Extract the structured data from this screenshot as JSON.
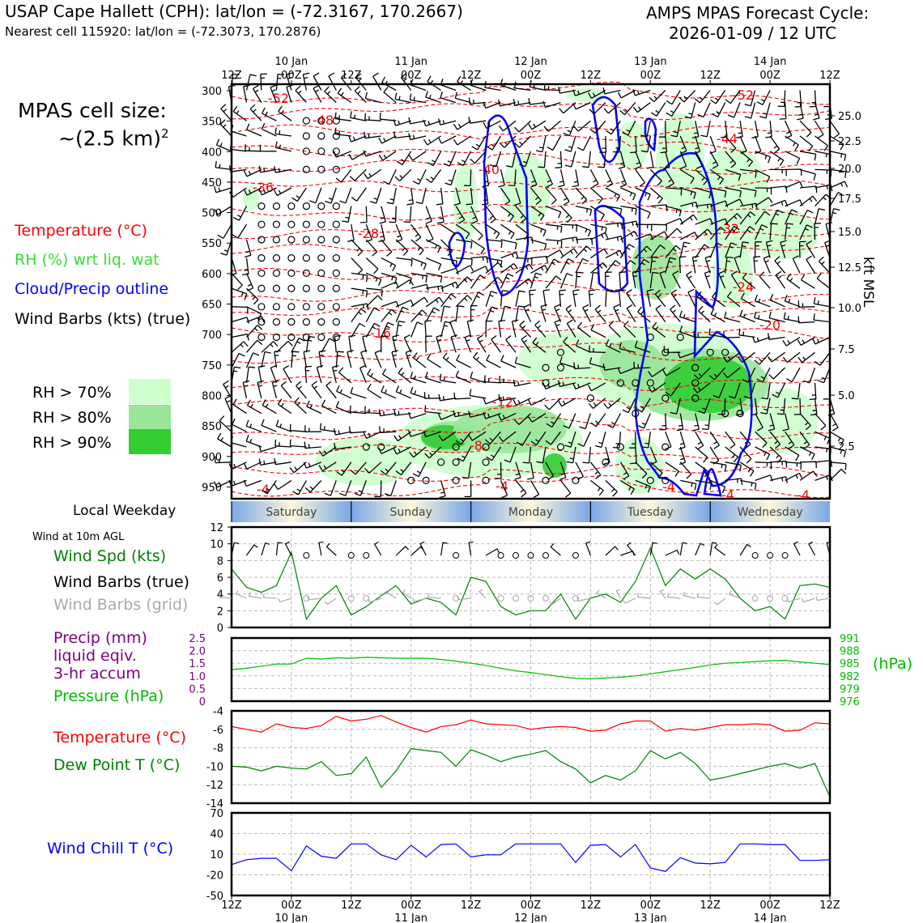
{
  "header": {
    "station": "USAP Cape Hallett (CPH): lat/lon = (-72.3167, 170.2667)",
    "nearest_cell": "Nearest cell 115920: lat/lon = (-72.3073, 170.2876)",
    "forecast_line1": "AMPS MPAS Forecast Cycle:",
    "forecast_line2": "2026-01-09 / 12 UTC"
  },
  "cell_size": {
    "line1": "MPAS cell size:",
    "line2": "~(2.5 km)",
    "sup": "2"
  },
  "legend": {
    "temperature": "Temperature (°C)",
    "rh": "RH (%) wrt liq. wat",
    "cloud": "Cloud/Precip outline",
    "wind": "Wind Barbs (kts) (true)",
    "rh70": "RH > 70%",
    "rh80": "RH > 80%",
    "rh90": "RH > 90%"
  },
  "colors": {
    "temp": "#ff0000",
    "rh": "#33cc33",
    "cloud": "#0000ff",
    "rh70": "#ccffcc",
    "rh80": "#99e699",
    "rh90": "#33cc33",
    "wind_spd": "#008000",
    "pressure": "#00bb00",
    "precip": "#800080",
    "dew": "#008000",
    "wind_chill": "#0000ff",
    "grid_barb": "#aaaaaa"
  },
  "time_axis": {
    "top_row": [
      "12Z",
      "00Z",
      "12Z",
      "00Z",
      "12Z",
      "00Z",
      "12Z",
      "00Z",
      "12Z",
      "00Z",
      "12Z"
    ],
    "dates": [
      "10 Jan",
      "11 Jan",
      "12 Jan",
      "13 Jan",
      "14 Jan"
    ]
  },
  "weekday": {
    "label": "Local Weekday",
    "days": [
      "Saturday",
      "Sunday",
      "Monday",
      "Tuesday",
      "Wednesday"
    ]
  },
  "sounding": {
    "pressure_ticks": [
      "300",
      "350",
      "400",
      "450",
      "500",
      "550",
      "600",
      "650",
      "700",
      "750",
      "800",
      "850",
      "900",
      "950"
    ],
    "kft_ticks": [
      "25.0",
      "22.5",
      "20.0",
      "17.5",
      "15.0",
      "12.5",
      "10.0",
      "7.5",
      "5.0",
      "2.5"
    ],
    "kft_label": "kft MSL",
    "temp_labels": [
      "-52",
      "-48",
      "-44",
      "-40",
      "-36",
      "-32",
      "-28",
      "-24",
      "-20",
      "-16",
      "-12",
      "-8",
      "-4",
      "-4",
      "-4",
      "-4",
      "-4",
      "-52"
    ]
  },
  "surface": {
    "wind_note": "Wind at 10m AGL",
    "wind_spd": "Wind Spd (kts)",
    "wind_barbs_true": "Wind Barbs (true)",
    "wind_barbs_grid": "Wind Barbs (grid)",
    "precip1": "Precip (mm)",
    "precip2": "liquid eqiv.",
    "precip3": "3-hr accum",
    "pressure": "Pressure (hPa)",
    "hpa_unit": "(hPa)",
    "temp": "Temperature (°C)",
    "dew": "Dew Point T (°C)",
    "chill": "Wind Chill T (°C)"
  },
  "chart_data": [
    {
      "type": "line",
      "title": "Wind Spd (kts)",
      "x": [
        "09/12Z",
        "09/15Z",
        "09/18Z",
        "09/21Z",
        "10/00Z",
        "10/03Z",
        "10/06Z",
        "10/09Z",
        "10/12Z",
        "10/15Z",
        "10/18Z",
        "10/21Z",
        "11/00Z",
        "11/03Z",
        "11/06Z",
        "11/09Z",
        "11/12Z",
        "11/15Z",
        "11/18Z",
        "11/21Z",
        "12/00Z",
        "12/03Z",
        "12/06Z",
        "12/09Z",
        "12/12Z",
        "12/15Z",
        "12/18Z",
        "12/21Z",
        "13/00Z",
        "13/03Z",
        "13/06Z",
        "13/09Z",
        "13/12Z",
        "13/15Z",
        "13/18Z",
        "13/21Z",
        "14/00Z",
        "14/03Z",
        "14/06Z",
        "14/09Z",
        "14/12Z"
      ],
      "series": [
        {
          "name": "Wind Spd (kts)",
          "values": [
            7.0,
            4.8,
            4.2,
            5.0,
            9.0,
            1.0,
            3.5,
            5.0,
            1.5,
            2.5,
            3.8,
            5.0,
            2.8,
            3.5,
            3.0,
            1.5,
            6.0,
            5.5,
            2.5,
            1.5,
            2.0,
            2.0,
            4.0,
            1.0,
            3.5,
            4.0,
            3.0,
            5.5,
            9.5,
            5.0,
            7.0,
            5.8,
            7.0,
            5.8,
            3.5,
            2.0,
            2.5,
            1.0,
            5.0,
            5.2,
            4.8
          ]
        }
      ],
      "ylim": [
        0,
        12
      ],
      "yticks": [
        "0",
        "2",
        "4",
        "6",
        "8",
        "10",
        "12"
      ]
    },
    {
      "type": "line",
      "title": "Pressure (hPa)",
      "x": [
        "09/12Z",
        "09/15Z",
        "09/18Z",
        "09/21Z",
        "10/00Z",
        "10/03Z",
        "10/06Z",
        "10/09Z",
        "10/12Z",
        "10/15Z",
        "10/18Z",
        "10/21Z",
        "11/00Z",
        "11/03Z",
        "11/06Z",
        "11/09Z",
        "11/12Z",
        "11/15Z",
        "11/18Z",
        "11/21Z",
        "12/00Z",
        "12/03Z",
        "12/06Z",
        "12/09Z",
        "12/12Z",
        "12/15Z",
        "12/18Z",
        "12/21Z",
        "13/00Z",
        "13/03Z",
        "13/06Z",
        "13/09Z",
        "13/12Z",
        "13/15Z",
        "13/18Z",
        "13/21Z",
        "14/00Z",
        "14/03Z",
        "14/06Z",
        "14/09Z",
        "14/12Z"
      ],
      "series": [
        {
          "name": "Pressure (hPa)",
          "values": [
            983.5,
            983.8,
            984.3,
            984.8,
            984.8,
            986.2,
            986.0,
            986.3,
            986.2,
            986.4,
            986.3,
            986.2,
            986.2,
            986.2,
            985.9,
            985.5,
            985.0,
            984.5,
            983.8,
            983.2,
            982.8,
            982.3,
            981.8,
            981.4,
            981.3,
            981.5,
            981.7,
            982.0,
            982.5,
            983.0,
            983.5,
            984.0,
            984.6,
            985.0,
            985.2,
            985.4,
            985.6,
            985.7,
            985.3,
            985.0,
            984.7
          ]
        }
      ],
      "ylim": [
        976,
        991
      ],
      "yticks_left": [
        "0",
        "0.5",
        "1.0",
        "1.5",
        "2.0",
        "2.5"
      ],
      "yticks_right": [
        "976",
        "979",
        "982",
        "985",
        "988",
        "991"
      ]
    },
    {
      "type": "line",
      "title": "Temperature / Dew Point (°C)",
      "x": [
        "09/12Z",
        "09/15Z",
        "09/18Z",
        "09/21Z",
        "10/00Z",
        "10/03Z",
        "10/06Z",
        "10/09Z",
        "10/12Z",
        "10/15Z",
        "10/18Z",
        "10/21Z",
        "11/00Z",
        "11/03Z",
        "11/06Z",
        "11/09Z",
        "11/12Z",
        "11/15Z",
        "11/18Z",
        "11/21Z",
        "12/00Z",
        "12/03Z",
        "12/06Z",
        "12/09Z",
        "12/12Z",
        "12/15Z",
        "12/18Z",
        "12/21Z",
        "13/00Z",
        "13/03Z",
        "13/06Z",
        "13/09Z",
        "13/12Z",
        "13/15Z",
        "13/18Z",
        "13/21Z",
        "14/00Z",
        "14/03Z",
        "14/06Z",
        "14/09Z",
        "14/12Z"
      ],
      "series": [
        {
          "name": "Temperature (°C)",
          "values": [
            -5.7,
            -6.0,
            -6.3,
            -5.4,
            -5.8,
            -5.9,
            -5.6,
            -4.6,
            -5.1,
            -4.9,
            -4.5,
            -5.2,
            -5.8,
            -6.3,
            -5.7,
            -5.5,
            -5.0,
            -5.4,
            -5.5,
            -5.6,
            -6.0,
            -5.8,
            -5.7,
            -5.8,
            -6.2,
            -6.1,
            -5.4,
            -5.1,
            -5.1,
            -6.2,
            -5.9,
            -6.1,
            -5.8,
            -5.5,
            -5.5,
            -5.4,
            -5.5,
            -6.2,
            -6.1,
            -5.3,
            -5.4
          ]
        },
        {
          "name": "Dew Point T (°C)",
          "values": [
            -10.0,
            -10.1,
            -10.5,
            -10.0,
            -10.2,
            -10.3,
            -9.5,
            -11.0,
            -10.8,
            -9.0,
            -12.3,
            -10.5,
            -8.1,
            -8.3,
            -8.5,
            -10.0,
            -8.2,
            -8.8,
            -9.5,
            -9.0,
            -8.7,
            -8.3,
            -9.5,
            -10.3,
            -11.8,
            -11.0,
            -11.5,
            -10.5,
            -8.3,
            -9.2,
            -8.5,
            -9.7,
            -11.5,
            -11.2,
            -10.8,
            -10.4,
            -10.0,
            -9.7,
            -10.2,
            -9.7,
            -13.3
          ]
        }
      ],
      "ylim": [
        -14,
        -4
      ],
      "yticks": [
        "-4",
        "-6",
        "-8",
        "-10",
        "-12",
        "-14"
      ]
    },
    {
      "type": "line",
      "title": "Wind Chill T (°C)",
      "x": [
        "09/12Z",
        "09/15Z",
        "09/18Z",
        "09/21Z",
        "10/00Z",
        "10/03Z",
        "10/06Z",
        "10/09Z",
        "10/12Z",
        "10/15Z",
        "10/18Z",
        "10/21Z",
        "11/00Z",
        "11/03Z",
        "11/06Z",
        "11/09Z",
        "11/12Z",
        "11/15Z",
        "11/18Z",
        "11/21Z",
        "12/00Z",
        "12/03Z",
        "12/06Z",
        "12/09Z",
        "12/12Z",
        "12/15Z",
        "12/18Z",
        "12/21Z",
        "13/00Z",
        "13/03Z",
        "13/06Z",
        "13/09Z",
        "13/12Z",
        "13/15Z",
        "13/18Z",
        "13/21Z",
        "14/00Z",
        "14/03Z",
        "14/06Z",
        "14/09Z",
        "14/12Z"
      ],
      "series": [
        {
          "name": "Wind Chill T (°C)",
          "values": [
            -5,
            2,
            4,
            4,
            -14,
            22,
            7,
            4,
            25,
            25,
            9,
            2,
            23,
            6,
            24,
            25,
            6,
            9,
            9,
            25,
            25,
            25,
            25,
            -2,
            23,
            24,
            6,
            24,
            -10,
            -15,
            5,
            -3,
            -4,
            -2,
            25,
            25,
            24,
            24,
            1,
            1,
            2
          ]
        }
      ],
      "ylim": [
        -50,
        70
      ],
      "yticks": [
        "70",
        "40",
        "10",
        "-20",
        "-50"
      ]
    }
  ]
}
